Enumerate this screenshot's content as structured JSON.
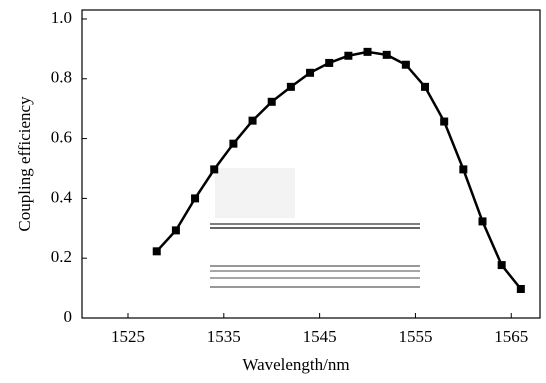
{
  "chart_data": {
    "type": "line",
    "x": [
      1528,
      1530,
      1532,
      1534,
      1536,
      1538,
      1540,
      1542,
      1544,
      1546,
      1548,
      1550,
      1552,
      1554,
      1556,
      1558,
      1560,
      1562,
      1564,
      1566
    ],
    "series": [
      {
        "color": "#000000",
        "values": [
          0.223,
          0.293,
          0.4,
          0.497,
          0.583,
          0.66,
          0.723,
          0.773,
          0.82,
          0.853,
          0.877,
          0.89,
          0.88,
          0.847,
          0.773,
          0.657,
          0.497,
          0.323,
          0.177,
          0.097
        ]
      }
    ],
    "xlabel": "Wavelength/nm",
    "ylabel": "Coupling efficiency",
    "xlim": [
      1520.2,
      1568
    ],
    "ylim": [
      0,
      1.03
    ],
    "xticks": [
      1525,
      1535,
      1545,
      1555,
      1565
    ],
    "yticks": [
      0,
      {
        "value": 0.2,
        "label": "0.2"
      },
      {
        "value": 0.4,
        "label": "0.4"
      },
      {
        "value": 0.6,
        "label": "0.6"
      },
      {
        "value": 0.8,
        "label": "0.8"
      },
      {
        "value": 1.0,
        "label": "1.0"
      }
    ]
  }
}
